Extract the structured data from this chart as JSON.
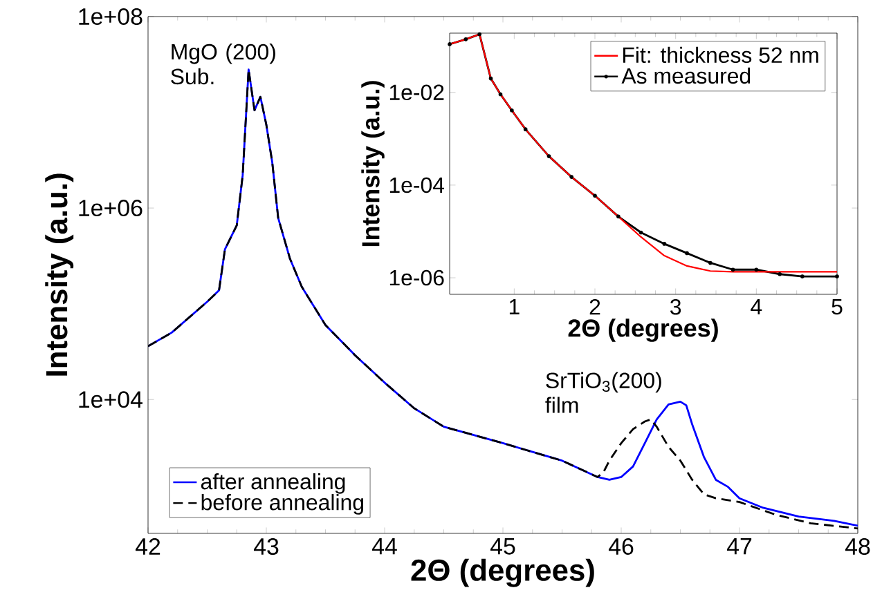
{
  "chart_data": [
    {
      "type": "line",
      "xlabel": "2Θ (degrees)",
      "ylabel": "Intensity (a.u.)",
      "log": "y",
      "xlim": [
        42,
        48
      ],
      "ylim": [
        400,
        100000000
      ],
      "xticks": [
        42,
        43,
        44,
        45,
        46,
        47,
        48
      ],
      "yticks": [
        {
          "value": 10000,
          "label": "1e+04"
        },
        {
          "value": 1000000,
          "label": "1e+06"
        },
        {
          "value": 100000000,
          "label": "1e+08"
        }
      ],
      "legend": "bottom left",
      "series": [
        {
          "name": "after annealing",
          "color": "#0000ff",
          "line_style": "solid",
          "x": [
            42.0,
            42.2,
            42.5,
            42.6,
            42.65,
            42.75,
            42.8,
            42.85,
            42.9,
            42.95,
            43.0,
            43.05,
            43.1,
            43.2,
            43.3,
            43.5,
            43.75,
            44.0,
            44.25,
            44.5,
            45.0,
            45.5,
            45.8,
            45.9,
            46.0,
            46.1,
            46.2,
            46.3,
            46.4,
            46.5,
            46.55,
            46.6,
            46.7,
            46.8,
            46.9,
            47.0,
            47.2,
            47.5,
            47.8,
            48.0
          ],
          "values": [
            36000,
            50000,
            105000,
            138000,
            370000,
            660000,
            2200000,
            28000000,
            10500000,
            14500000,
            7400000,
            3000000,
            790000,
            295000,
            150000,
            60000,
            29000,
            15000,
            8100,
            5200,
            3500,
            2300,
            1550,
            1450,
            1550,
            2000,
            3500,
            6200,
            8900,
            9500,
            8700,
            5500,
            2500,
            1450,
            1230,
            930,
            740,
            600,
            540,
            480
          ]
        },
        {
          "name": "before annealing",
          "color": "#000000",
          "line_style": "dashed",
          "x": [
            42.0,
            42.2,
            42.5,
            42.6,
            42.65,
            42.75,
            42.8,
            42.85,
            42.9,
            42.95,
            43.0,
            43.05,
            43.1,
            43.2,
            43.3,
            43.5,
            43.75,
            44.0,
            44.25,
            44.5,
            45.0,
            45.5,
            45.8,
            45.85,
            45.9,
            46.0,
            46.1,
            46.2,
            46.25,
            46.3,
            46.4,
            46.5,
            46.6,
            46.7,
            46.8,
            47.0,
            47.3,
            47.6,
            48.0
          ],
          "values": [
            36000,
            50000,
            105000,
            138000,
            370000,
            660000,
            2200000,
            28000000,
            10500000,
            14500000,
            7400000,
            3000000,
            790000,
            295000,
            150000,
            60000,
            29000,
            15000,
            8100,
            5200,
            3500,
            2300,
            1550,
            1740,
            2300,
            3500,
            4900,
            5900,
            6200,
            5200,
            3200,
            2300,
            1450,
            1020,
            930,
            850,
            630,
            510,
            450
          ]
        }
      ],
      "annotations": [
        {
          "text": "MgO (200) Sub.",
          "x": 42.85,
          "y": 28000000
        },
        "SrTiO$_{3}$(200) film"
      ]
    },
    {
      "type": "line",
      "xlabel": "2Θ (degrees)",
      "ylabel": "Intensity (a.u.)",
      "log": "y",
      "xlim": [
        0.2,
        5
      ],
      "ylim": [
        4.4e-07,
        0.19
      ],
      "xticks": [
        1,
        2,
        3,
        4,
        5
      ],
      "yticks": [
        {
          "value": 1e-06,
          "label": "1e-06"
        },
        {
          "value": 0.0001,
          "label": "1e-04"
        },
        {
          "value": 0.01,
          "label": "1e-02"
        }
      ],
      "legend": "top right",
      "series": [
        {
          "name": "Fit: thickness 52 nm",
          "color": "#ff0000",
          "line_style": "solid",
          "marker": "none",
          "x": [
            0.2,
            0.4,
            0.57,
            0.71,
            0.83,
            0.97,
            1.14,
            1.43,
            1.71,
            2.0,
            2.29,
            2.57,
            2.86,
            3.14,
            3.43,
            3.71,
            4.0,
            4.29,
            4.57,
            5.0
          ],
          "values": [
            0.11,
            0.14,
            0.18,
            0.02,
            0.0091,
            0.0041,
            0.0016,
            0.00042,
            0.00015,
            5.9e-05,
            2.1e-05,
            7.6e-06,
            3e-06,
            1.8e-06,
            1.4e-06,
            1.35e-06,
            1.35e-06,
            1.35e-06,
            1.35e-06,
            1.35e-06
          ]
        },
        {
          "name": "As measured",
          "color": "#000000",
          "line_style": "solid",
          "marker": "circle",
          "x": [
            0.2,
            0.4,
            0.57,
            0.71,
            0.83,
            0.97,
            1.14,
            1.43,
            1.71,
            2.0,
            2.29,
            2.57,
            2.86,
            3.14,
            3.43,
            3.71,
            4.0,
            4.29,
            4.57,
            5.0
          ],
          "values": [
            0.11,
            0.14,
            0.18,
            0.02,
            0.0091,
            0.0041,
            0.0016,
            0.00042,
            0.00015,
            5.9e-05,
            2.1e-05,
            9.5e-06,
            5.4e-06,
            3.4e-06,
            2.1e-06,
            1.5e-06,
            1.5e-06,
            1.2e-06,
            1.07e-06,
            1.07e-06
          ]
        }
      ]
    }
  ]
}
